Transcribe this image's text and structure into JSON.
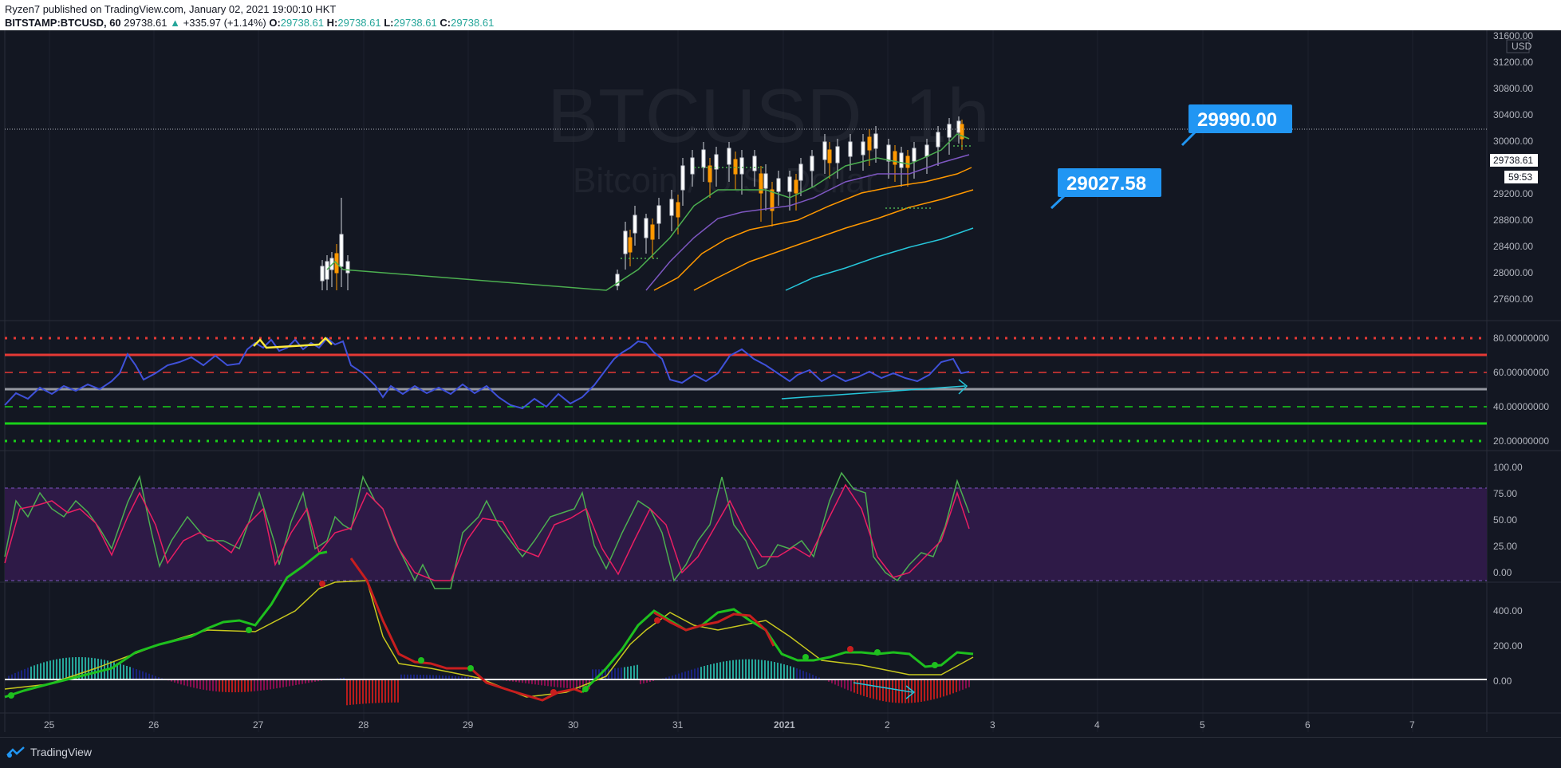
{
  "header": {
    "publisher_line": "Ryzen7 published on TradingView.com, January 02, 2021 19:00:10 HKT",
    "symbol": "BITSTAMP:BTCUSD, 60",
    "price": "29738.61",
    "change_arrow": "▲",
    "change": "+335.97 (+1.14%)",
    "o_label": "O:",
    "o_value": "29738.61",
    "h_label": "H:",
    "h_value": "29738.61",
    "l_label": "L:",
    "l_value": "29738.61",
    "c_label": "C:",
    "c_value": "29738.61"
  },
  "watermark": {
    "title": "BTCUSD, 1h",
    "subtitle": "Bitcoin / U.S. Dollar"
  },
  "price_axis": {
    "currency": "USD",
    "ticks": [
      "31600.00",
      "31200.00",
      "30800.00",
      "30400.00",
      "30000.00",
      "29200.00",
      "28800.00",
      "28400.00",
      "28000.00",
      "27600.00"
    ],
    "last_price_tag": "29738.61",
    "countdown_tag": "59:53"
  },
  "callouts": [
    {
      "text": "29990.00"
    },
    {
      "text": "29027.58"
    }
  ],
  "rsi_axis": [
    "80.00000000",
    "60.00000000",
    "40.00000000",
    "20.00000000"
  ],
  "stoch_axis": [
    "100.00",
    "75.00",
    "50.00",
    "25.00",
    "0.00"
  ],
  "macd_axis": [
    "400.00",
    "200.00",
    "0.00"
  ],
  "time_axis": [
    "25",
    "26",
    "27",
    "28",
    "29",
    "30",
    "31",
    "2021",
    "2",
    "3",
    "4",
    "5",
    "6",
    "7"
  ],
  "footer": {
    "brand": "TradingView"
  },
  "colors": {
    "bg": "#131722",
    "callout": "#2196f3",
    "up": "#26a69a",
    "ema_fast": "#4caf50",
    "ema_mid": "#7e57c2",
    "ema_slow": "#ff9800",
    "sma_long": "#26c6da",
    "rsi_line": "#3f51d9",
    "stoch_k": "#4caf50",
    "stoch_d": "#e91e63",
    "macd_up": "#1ec01e",
    "macd_down": "#c81e1e",
    "signal": "#c8c81e"
  },
  "chart_data": {
    "type": "line",
    "title": "BTCUSD, 1h",
    "price_series": [
      {
        "t": "Dec 27 18:00",
        "close": 27900
      },
      {
        "t": "Dec 27 20:00",
        "close": 28100
      },
      {
        "t": "Dec 28",
        "close": 27700
      },
      {
        "t": "Dec 30 12:00",
        "close": 27550
      },
      {
        "t": "Dec 30 18:00",
        "close": 28100
      },
      {
        "t": "Dec 31 00:00",
        "close": 28500
      },
      {
        "t": "Dec 31 06:00",
        "close": 29000
      },
      {
        "t": "Dec 31 12:00",
        "close": 28900
      },
      {
        "t": "Dec 31 18:00",
        "close": 28700
      },
      {
        "t": "Jan 1 00:00",
        "close": 28500
      },
      {
        "t": "Jan 1 06:00",
        "close": 28900
      },
      {
        "t": "Jan 1 12:00",
        "close": 29300
      },
      {
        "t": "Jan 1 18:00",
        "close": 29450
      },
      {
        "t": "Jan 2 00:00",
        "close": 29100
      },
      {
        "t": "Jan 2 06:00",
        "close": 29300
      },
      {
        "t": "Jan 2 12:00",
        "close": 29600
      },
      {
        "t": "Jan 2 18:00",
        "close": 29738.61
      }
    ],
    "levels": {
      "callout_high": 29990.0,
      "callout_low": 29027.58,
      "last": 29738.61
    },
    "rsi_levels": [
      80,
      70,
      60,
      50,
      40,
      30,
      20
    ],
    "stoch_band": [
      20,
      80
    ]
  }
}
